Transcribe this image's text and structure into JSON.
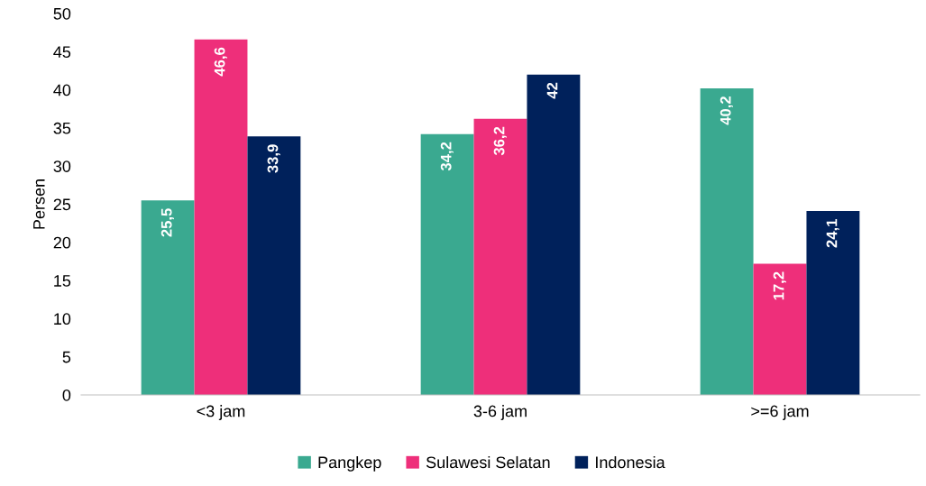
{
  "chart_data": {
    "type": "bar",
    "ylabel": "Persen",
    "categories": [
      "<3 jam",
      "3-6 jam",
      ">=6 jam"
    ],
    "series": [
      {
        "name": "Pangkep",
        "color": "#3aa990",
        "values": [
          25.5,
          34.2,
          40.2
        ],
        "value_labels": [
          "25,5",
          "34,2",
          "40,2"
        ]
      },
      {
        "name": "Sulawesi Selatan",
        "color": "#ee2f7a",
        "values": [
          46.6,
          36.2,
          17.2
        ],
        "value_labels": [
          "46,6",
          "36,2",
          "17,2"
        ]
      },
      {
        "name": "Indonesia",
        "color": "#00215b",
        "values": [
          33.9,
          42,
          24.1
        ],
        "value_labels": [
          "33,9",
          "42",
          "24,1"
        ]
      }
    ],
    "ylim": [
      0,
      50
    ],
    "yticks": [
      0,
      5,
      10,
      15,
      20,
      25,
      30,
      35,
      40,
      45,
      50
    ],
    "grid": false,
    "legend": "bottom"
  }
}
